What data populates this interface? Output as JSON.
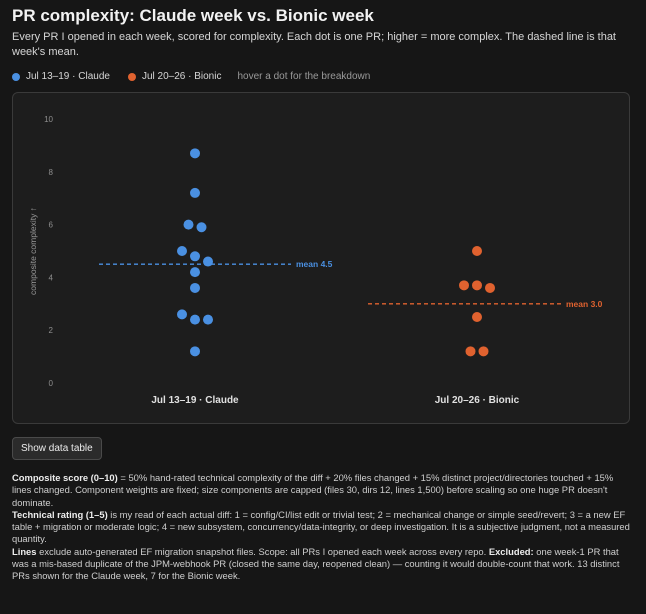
{
  "header": {
    "title": "PR complexity: Claude week vs. Bionic week",
    "subtitle": "Every PR I opened in each week, scored for complexity. Each dot is one PR; higher = more complex. The dashed line is that week's mean."
  },
  "legend": {
    "items": [
      {
        "label": "Jul 13–19 · Claude",
        "color": "#4a90e2"
      },
      {
        "label": "Jul 20–26 · Bionic",
        "color": "#e0622f"
      }
    ],
    "hint": "hover a dot for the breakdown"
  },
  "controls": {
    "show_table_label": "Show data table"
  },
  "notes": {
    "composite_label": "Composite score (0–10)",
    "composite_text": " = 50% hand-rated technical complexity of the diff + 20% files changed + 15% distinct project/directories touched + 15% lines changed. Component weights are fixed; size components are capped (files 30, dirs 12, lines 1,500) before scaling so one huge PR doesn't dominate.",
    "technical_label": "Technical rating (1–5)",
    "technical_text": " is my read of each actual diff: 1 = config/CI/list edit or trivial test; 2 = mechanical change or simple seed/revert; 3 = a new EF table + migration or moderate logic; 4 = new subsystem, concurrency/data-integrity, or deep investigation. It is a subjective judgment, not a measured quantity.",
    "lines_label": "Lines",
    "lines_text": " exclude auto-generated EF migration snapshot files. Scope: all PRs I opened each week across every repo. ",
    "excluded_label": "Excluded:",
    "excluded_text": " one week-1 PR that was a mis-based duplicate of the JPM-webhook PR (closed the same day, reopened clean) — counting it would double-count that work. 13 distinct PRs shown for the Claude week, 7 for the Bionic week."
  },
  "chart_data": {
    "type": "scatter",
    "ylabel": "composite complexity ↑",
    "ylim": [
      0,
      10
    ],
    "yticks": [
      0,
      2,
      4,
      6,
      8,
      10
    ],
    "grid": false,
    "categories": [
      "Jul 13–19 · Claude",
      "Jul 20–26 · Bionic"
    ],
    "series": [
      {
        "name": "Jul 13–19 · Claude",
        "color": "#4a90e2",
        "values": [
          8.7,
          7.2,
          6.0,
          5.9,
          5.0,
          4.8,
          4.6,
          4.2,
          3.6,
          2.6,
          2.4,
          2.4,
          1.2
        ],
        "mean": 4.5,
        "mean_label": "mean 4.5"
      },
      {
        "name": "Jul 20–26 · Bionic",
        "color": "#e0622f",
        "values": [
          5.0,
          3.7,
          3.7,
          3.6,
          2.5,
          1.2,
          1.2
        ],
        "mean": 3.0,
        "mean_label": "mean 3.0"
      }
    ]
  }
}
